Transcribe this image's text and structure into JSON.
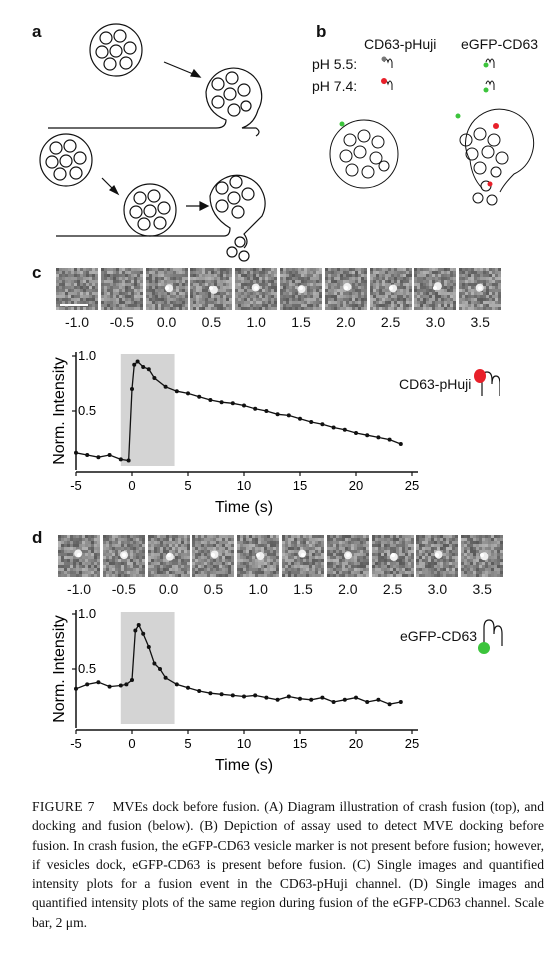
{
  "figure": {
    "panel_a": {
      "letter": "a"
    },
    "panel_b": {
      "letter": "b",
      "col1": "CD63-pHuji",
      "col2": "eGFP-CD63",
      "row1": "pH 5.5:",
      "row2": "pH 7.4:"
    },
    "panel_c": {
      "letter": "c",
      "time_labels": [
        "-1.0",
        "-0.5",
        "0.0",
        "0.5",
        "1.0",
        "1.5",
        "2.0",
        "2.5",
        "3.0",
        "3.5"
      ],
      "legend": "CD63-pHuji",
      "legend_color": "#e8202a"
    },
    "panel_d": {
      "letter": "d",
      "time_labels": [
        "-1.0",
        "-0.5",
        "0.0",
        "0.5",
        "1.0",
        "1.5",
        "2.0",
        "2.5",
        "3.0",
        "3.5"
      ],
      "legend": "eGFP-CD63",
      "legend_color": "#3cc43c"
    }
  },
  "chart_data": [
    {
      "type": "line",
      "panel": "c",
      "xlabel": "Time (s)",
      "ylabel": "Norm. Intensity",
      "xlim": [
        -5,
        25
      ],
      "ylim": [
        0,
        1.0
      ],
      "xticks": [
        -5,
        0,
        5,
        10,
        15,
        20,
        25
      ],
      "yticks": [
        0.5,
        1.0
      ],
      "ytick_labels": [
        "0.5",
        "1.0"
      ],
      "shaded_region": [
        -1,
        3.8
      ],
      "x": [
        -5,
        -4,
        -3,
        -2,
        -1,
        -0.3,
        0,
        0.2,
        0.5,
        1,
        1.5,
        2,
        3,
        4,
        5,
        6,
        7,
        8,
        9,
        10,
        11,
        12,
        13,
        14,
        15,
        16,
        17,
        18,
        19,
        20,
        21,
        22,
        23,
        24
      ],
      "values": [
        0.12,
        0.1,
        0.08,
        0.1,
        0.06,
        0.05,
        0.7,
        0.92,
        0.95,
        0.9,
        0.88,
        0.8,
        0.72,
        0.68,
        0.66,
        0.63,
        0.6,
        0.58,
        0.57,
        0.55,
        0.52,
        0.5,
        0.47,
        0.46,
        0.43,
        0.4,
        0.38,
        0.35,
        0.33,
        0.3,
        0.28,
        0.26,
        0.24,
        0.2
      ]
    },
    {
      "type": "line",
      "panel": "d",
      "xlabel": "Time (s)",
      "ylabel": "Norm. Intensity",
      "xlim": [
        -5,
        25
      ],
      "ylim": [
        0,
        1.0
      ],
      "xticks": [
        -5,
        0,
        5,
        10,
        15,
        20,
        25
      ],
      "yticks": [
        0.5,
        1.0
      ],
      "ytick_labels": [
        "0.5",
        "1.0"
      ],
      "shaded_region": [
        -1,
        3.8
      ],
      "x": [
        -5,
        -4,
        -3,
        -2,
        -1,
        -0.5,
        0,
        0.3,
        0.6,
        1,
        1.5,
        2,
        2.5,
        3,
        4,
        5,
        6,
        7,
        8,
        9,
        10,
        11,
        12,
        13,
        14,
        15,
        16,
        17,
        18,
        19,
        20,
        21,
        22,
        23,
        24
      ],
      "values": [
        0.32,
        0.36,
        0.38,
        0.34,
        0.35,
        0.36,
        0.4,
        0.85,
        0.9,
        0.82,
        0.7,
        0.55,
        0.5,
        0.42,
        0.36,
        0.33,
        0.3,
        0.28,
        0.27,
        0.26,
        0.25,
        0.26,
        0.24,
        0.22,
        0.25,
        0.23,
        0.22,
        0.24,
        0.2,
        0.22,
        0.24,
        0.2,
        0.22,
        0.18,
        0.2
      ]
    }
  ],
  "caption": {
    "title": "FIGURE 7",
    "text": "MVEs dock before fusion. (A) Diagram illustration of crash fusion (top), and docking and fusion (below). (B) Depiction of assay used to detect MVE docking before fusion. In crash fusion, the eGFP-CD63 vesicle marker is not present before fusion; however, if vesicles dock, eGFP-CD63 is present before fusion. (C) Single images and quantified intensity plots for a fusion event in the CD63-pHuji channel. (D) Single images and quantified intensity plots of the same region during fusion of the eGFP-CD63 channel. Scale bar, 2 μm."
  }
}
